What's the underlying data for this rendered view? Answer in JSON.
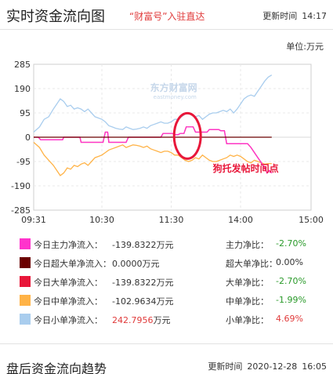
{
  "header": {
    "title": "实时资金流向图",
    "link": "“财富号”入驻直达",
    "update_label": "更新时间",
    "update_time": "14:17"
  },
  "unit": "单位:万元",
  "watermark": "东方财富网",
  "watermark_sub": "eastmoney.com",
  "annotation": "狗托发帖时间点",
  "colors": {
    "main": "#ff33cc",
    "super": "#6b0000",
    "big": "#e8173a",
    "mid": "#ffb347",
    "small": "#a9cdee",
    "annotation": "#e8173a"
  },
  "legend": [
    {
      "label": "今日主力净流入：",
      "value": "-139.8322",
      "unit": "万元",
      "ratio_label": "主力净比：",
      "ratio": "-2.70%",
      "value_color": "dark",
      "ratio_color": "green",
      "swatch": "#ff33cc"
    },
    {
      "label": "今日超大单净流入：",
      "value": "0.0000",
      "unit": "万元",
      "ratio_label": "超大单净比：",
      "ratio": "0.00%",
      "value_color": "dark",
      "ratio_color": "dark",
      "swatch": "#6b0000"
    },
    {
      "label": "今日大单净流入：",
      "value": "-139.8322",
      "unit": "万元",
      "ratio_label": "大单净比：",
      "ratio": "-2.70%",
      "value_color": "dark",
      "ratio_color": "green",
      "swatch": "#e8173a"
    },
    {
      "label": "今日中单净流入：",
      "value": "-102.9634",
      "unit": "万元",
      "ratio_label": "中单净比：",
      "ratio": "-1.99%",
      "value_color": "dark",
      "ratio_color": "green",
      "swatch": "#ffb347"
    },
    {
      "label": "今日小单净流入：",
      "value": "242.7956",
      "unit": "万元",
      "ratio_label": "小单净比：",
      "ratio": "4.69%",
      "value_color": "red",
      "ratio_color": "red",
      "swatch": "#a9cdee"
    }
  ],
  "footer": {
    "title": "盘后资金流向趋势",
    "update_label": "更新时间",
    "date": "2020-12-28",
    "time": "16:05"
  },
  "chart_data": {
    "type": "line",
    "y_ticks": [
      285,
      190,
      95,
      0,
      -95,
      -190,
      -285
    ],
    "ylim": [
      -285,
      285
    ],
    "x_ticks": [
      "09:31",
      "10:30",
      "11:30",
      "14:00",
      "15:00"
    ],
    "x_tick_minutes": [
      0,
      59,
      119,
      179,
      240
    ],
    "x_total_minutes": 240,
    "grid": true,
    "series": [
      {
        "key": "small",
        "values": [
          [
            0,
            20
          ],
          [
            5,
            40
          ],
          [
            9,
            70
          ],
          [
            13,
            80
          ],
          [
            17,
            110
          ],
          [
            20,
            130
          ],
          [
            23,
            150
          ],
          [
            26,
            140
          ],
          [
            29,
            120
          ],
          [
            32,
            125
          ],
          [
            35,
            110
          ],
          [
            38,
            115
          ],
          [
            41,
            110
          ],
          [
            44,
            100
          ],
          [
            47,
            110
          ],
          [
            50,
            95
          ],
          [
            53,
            80
          ],
          [
            56,
            75
          ],
          [
            59,
            70
          ],
          [
            62,
            60
          ],
          [
            65,
            45
          ],
          [
            68,
            40
          ],
          [
            71,
            35
          ],
          [
            74,
            32
          ],
          [
            77,
            30
          ],
          [
            80,
            40
          ],
          [
            83,
            35
          ],
          [
            86,
            30
          ],
          [
            89,
            32
          ],
          [
            92,
            35
          ],
          [
            95,
            40
          ],
          [
            98,
            35
          ],
          [
            101,
            45
          ],
          [
            104,
            50
          ],
          [
            107,
            55
          ],
          [
            110,
            60
          ],
          [
            113,
            55
          ],
          [
            116,
            55
          ],
          [
            119,
            60
          ],
          [
            122,
            70
          ],
          [
            125,
            70
          ],
          [
            128,
            80
          ],
          [
            131,
            90
          ],
          [
            134,
            95
          ],
          [
            137,
            90
          ],
          [
            140,
            80
          ],
          [
            143,
            85
          ],
          [
            146,
            70
          ],
          [
            149,
            80
          ],
          [
            152,
            90
          ],
          [
            155,
            95
          ],
          [
            158,
            95
          ],
          [
            161,
            100
          ],
          [
            164,
            105
          ],
          [
            167,
            100
          ],
          [
            170,
            110
          ],
          [
            173,
            95
          ],
          [
            176,
            110
          ],
          [
            179,
            130
          ],
          [
            182,
            150
          ],
          [
            185,
            160
          ],
          [
            188,
            165
          ],
          [
            191,
            160
          ],
          [
            194,
            180
          ],
          [
            197,
            200
          ],
          [
            200,
            220
          ],
          [
            203,
            235
          ],
          [
            206,
            243
          ]
        ]
      },
      {
        "key": "mid",
        "values": [
          [
            0,
            -20
          ],
          [
            5,
            -40
          ],
          [
            9,
            -70
          ],
          [
            13,
            -90
          ],
          [
            17,
            -110
          ],
          [
            20,
            -130
          ],
          [
            23,
            -150
          ],
          [
            26,
            -140
          ],
          [
            29,
            -120
          ],
          [
            32,
            -125
          ],
          [
            35,
            -110
          ],
          [
            38,
            -115
          ],
          [
            41,
            -105
          ],
          [
            44,
            -100
          ],
          [
            47,
            -110
          ],
          [
            50,
            -95
          ],
          [
            53,
            -80
          ],
          [
            56,
            -75
          ],
          [
            59,
            -70
          ],
          [
            62,
            -60
          ],
          [
            65,
            -50
          ],
          [
            68,
            -45
          ],
          [
            71,
            -40
          ],
          [
            74,
            -35
          ],
          [
            77,
            -30
          ],
          [
            80,
            -40
          ],
          [
            83,
            -35
          ],
          [
            86,
            -30
          ],
          [
            89,
            -32
          ],
          [
            92,
            -35
          ],
          [
            95,
            -40
          ],
          [
            98,
            -35
          ],
          [
            101,
            -45
          ],
          [
            104,
            -50
          ],
          [
            107,
            -55
          ],
          [
            110,
            -60
          ],
          [
            113,
            -55
          ],
          [
            116,
            -55
          ],
          [
            119,
            -60
          ],
          [
            122,
            -70
          ],
          [
            125,
            -70
          ],
          [
            128,
            -80
          ],
          [
            131,
            -90
          ],
          [
            134,
            -95
          ],
          [
            137,
            -90
          ],
          [
            140,
            -80
          ],
          [
            143,
            -85
          ],
          [
            146,
            -70
          ],
          [
            149,
            -80
          ],
          [
            152,
            -90
          ],
          [
            155,
            -95
          ],
          [
            158,
            -95
          ],
          [
            161,
            -90
          ],
          [
            164,
            -85
          ],
          [
            167,
            -80
          ],
          [
            170,
            -70
          ],
          [
            173,
            -75
          ],
          [
            176,
            -70
          ],
          [
            179,
            -75
          ],
          [
            182,
            -85
          ],
          [
            185,
            -95
          ],
          [
            188,
            -100
          ],
          [
            191,
            -90
          ],
          [
            194,
            -95
          ],
          [
            197,
            -100
          ],
          [
            200,
            -105
          ],
          [
            203,
            -103
          ],
          [
            206,
            -103
          ]
        ]
      },
      {
        "key": "big",
        "values": [
          [
            0,
            0
          ],
          [
            4,
            0
          ],
          [
            6,
            -10
          ],
          [
            25,
            -10
          ],
          [
            26,
            0
          ],
          [
            40,
            0
          ],
          [
            41,
            -20
          ],
          [
            60,
            -20
          ],
          [
            62,
            20
          ],
          [
            64,
            20
          ],
          [
            65,
            -20
          ],
          [
            80,
            -20
          ],
          [
            82,
            0
          ],
          [
            110,
            0
          ],
          [
            112,
            15
          ],
          [
            120,
            15
          ],
          [
            122,
            10
          ],
          [
            125,
            10
          ],
          [
            127,
            15
          ],
          [
            130,
            15
          ],
          [
            132,
            40
          ],
          [
            138,
            40
          ],
          [
            140,
            20
          ],
          [
            150,
            20
          ],
          [
            152,
            30
          ],
          [
            160,
            30
          ],
          [
            162,
            25
          ],
          [
            165,
            25
          ],
          [
            167,
            -25
          ],
          [
            185,
            -25
          ],
          [
            188,
            -40
          ],
          [
            191,
            -60
          ],
          [
            194,
            -80
          ],
          [
            197,
            -100
          ],
          [
            200,
            -120
          ],
          [
            202,
            -140
          ],
          [
            204,
            -130
          ],
          [
            206,
            -140
          ]
        ]
      },
      {
        "key": "main",
        "values": [
          [
            0,
            0
          ],
          [
            4,
            0
          ],
          [
            6,
            -10
          ],
          [
            25,
            -10
          ],
          [
            26,
            0
          ],
          [
            40,
            0
          ],
          [
            41,
            -20
          ],
          [
            60,
            -20
          ],
          [
            62,
            20
          ],
          [
            64,
            20
          ],
          [
            65,
            -20
          ],
          [
            80,
            -20
          ],
          [
            82,
            0
          ],
          [
            110,
            0
          ],
          [
            112,
            15
          ],
          [
            120,
            15
          ],
          [
            122,
            10
          ],
          [
            125,
            10
          ],
          [
            127,
            15
          ],
          [
            130,
            15
          ],
          [
            132,
            40
          ],
          [
            138,
            40
          ],
          [
            140,
            20
          ],
          [
            150,
            20
          ],
          [
            152,
            30
          ],
          [
            160,
            30
          ],
          [
            162,
            25
          ],
          [
            165,
            25
          ],
          [
            167,
            -25
          ],
          [
            185,
            -25
          ],
          [
            188,
            -40
          ],
          [
            191,
            -60
          ],
          [
            194,
            -80
          ],
          [
            197,
            -100
          ],
          [
            200,
            -120
          ],
          [
            202,
            -140
          ],
          [
            204,
            -130
          ],
          [
            206,
            -140
          ]
        ]
      },
      {
        "key": "super",
        "values": [
          [
            0,
            0
          ],
          [
            206,
            0
          ]
        ]
      }
    ]
  }
}
